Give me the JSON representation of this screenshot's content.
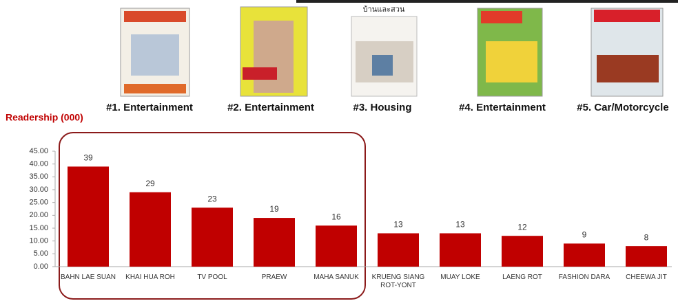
{
  "chart_data": {
    "type": "bar",
    "title": "Readership (000)",
    "annotations": [
      "#1. Entertainment",
      "#2. Entertainment",
      "#3. Housing",
      "#4. Entertainment",
      "#5. Car/Motorcycle"
    ],
    "cover_caption": "บ้านและสวน",
    "categories": [
      "BAHN LAE SUAN",
      "KHAI HUA ROH",
      "TV POOL",
      "PRAEW",
      "MAHA SANUK",
      "KRUENG SIANG ROT-YONT",
      "MUAY LOKE",
      "LAENG ROT",
      "FASHION DARA",
      "CHEEWA JIT"
    ],
    "values": [
      39,
      29,
      23,
      19,
      16,
      13,
      13,
      12,
      9,
      8
    ],
    "color": "#c00000",
    "ylim": [
      0,
      45
    ],
    "yticks": [
      {
        "value": 0,
        "label": "0.00"
      },
      {
        "value": 5,
        "label": "5.00"
      },
      {
        "value": 10,
        "label": "10.00"
      },
      {
        "value": 15,
        "label": "15.00"
      },
      {
        "value": 20,
        "label": "20.00"
      },
      {
        "value": 25,
        "label": "25.00"
      },
      {
        "value": 30,
        "label": "30.00"
      },
      {
        "value": 35,
        "label": "35.00"
      },
      {
        "value": 40,
        "label": "40.00"
      },
      {
        "value": 45,
        "label": "45.00"
      }
    ],
    "grid": false
  }
}
